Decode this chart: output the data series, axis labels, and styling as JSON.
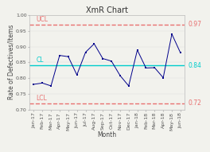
{
  "title": "XmR Chart",
  "xlabel": "Month",
  "ylabel": "Rate of Defectives/Items",
  "x_labels": [
    "Jan-17",
    "Feb-17",
    "Mar-17",
    "Apr-17",
    "May-17",
    "Jun-17",
    "Jul-17",
    "Aug-17",
    "Sep-17",
    "Oct-17",
    "Nov-17",
    "Dec-17",
    "Jan-18",
    "Feb-18",
    "Mar-18",
    "Apr-18",
    "May-18",
    "Jun-18"
  ],
  "y_values": [
    0.78,
    0.784,
    0.775,
    0.872,
    0.868,
    0.81,
    0.882,
    0.909,
    0.862,
    0.854,
    0.808,
    0.775,
    0.889,
    0.832,
    0.833,
    0.801,
    0.94,
    0.88
  ],
  "UCL": 0.97,
  "CL": 0.84,
  "LCL": 0.72,
  "line_color": "#00008B",
  "ucl_color": "#E87070",
  "cl_color": "#00CCCC",
  "lcl_color": "#E87070",
  "bg_color": "#F2F2ED",
  "ylim_min": 0.7,
  "ylim_max": 1.0,
  "title_fontsize": 7,
  "axis_fontsize": 5.5,
  "tick_fontsize": 4.5,
  "label_fontsize": 5.5
}
